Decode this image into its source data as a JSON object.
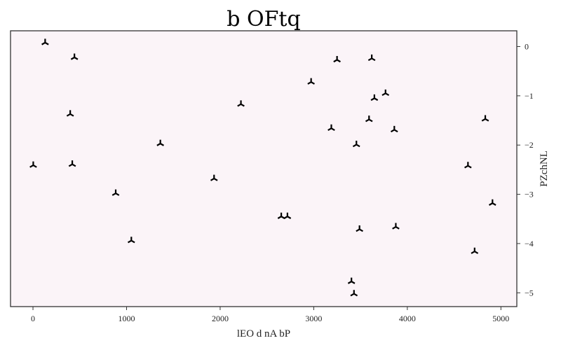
{
  "chart_data": {
    "type": "scatter",
    "title": "b OFtq",
    "xlabel": "lEO d nA bP",
    "ylabel": "PZchNL",
    "xlim": [
      -240,
      5170
    ],
    "ylim": [
      -5.28,
      0.32
    ],
    "x_ticks": [
      "0",
      "1000",
      "2000",
      "3000",
      "4000",
      "5000"
    ],
    "y_ticks": [
      "0",
      "−1",
      "−2",
      "−3",
      "−4",
      "−5"
    ],
    "y_axis_position": "right",
    "grid": false,
    "marker": "tri_down",
    "colors": {
      "marker": "#000000",
      "plot_background": "#fbf4f8",
      "axes": "#333333"
    },
    "x": [
      130,
      443,
      398,
      420,
      3,
      884,
      1051,
      1361,
      1935,
      2222,
      2653,
      2719,
      2972,
      3188,
      3249,
      3403,
      3430,
      3456,
      3489,
      3591,
      3620,
      3648,
      3767,
      3861,
      3877,
      4648,
      4719,
      4833,
      4910
    ],
    "y": [
      0.08,
      -0.22,
      -1.37,
      -2.39,
      -2.41,
      -2.98,
      -3.94,
      -1.97,
      -2.68,
      -1.17,
      -3.45,
      -3.45,
      -0.72,
      -1.66,
      -0.27,
      -4.77,
      -5.02,
      -1.99,
      -3.71,
      -1.48,
      -0.24,
      -1.05,
      -0.95,
      -1.69,
      -3.66,
      -2.42,
      -4.16,
      -1.47,
      -3.18
    ]
  }
}
